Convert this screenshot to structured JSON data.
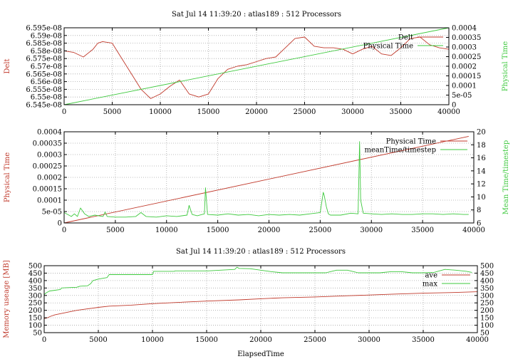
{
  "colors": {
    "red": "#c0392b",
    "green": "#3ec93e",
    "grid": "#a8a8a8"
  },
  "chart_data": [
    {
      "type": "line",
      "title": "Sat Jul 14 11:39:20 : atlas189 : 512 Processors",
      "ylabel": "Delt",
      "y2label": "Physical Time",
      "xlim": [
        0,
        40000
      ],
      "ylim": [
        6.545e-08,
        6.595e-08
      ],
      "y2lim": [
        0,
        0.0004
      ],
      "x_ticks": [
        "0",
        "5000",
        "10000",
        "15000",
        "20000",
        "25000",
        "30000",
        "35000",
        "40000"
      ],
      "y_ticks": [
        "6.545e-08",
        "6.55e-08",
        "6.555e-08",
        "6.56e-08",
        "6.565e-08",
        "6.57e-08",
        "6.575e-08",
        "6.58e-08",
        "6.585e-08",
        "6.59e-08",
        "6.595e-08"
      ],
      "y2_ticks": [
        "0",
        "5e-05",
        "0.0001",
        "0.00015",
        "0.0002",
        "0.00025",
        "0.0003",
        "0.00035",
        "0.0004"
      ],
      "grid": true,
      "legend_position": "top-right",
      "series": [
        {
          "name": "Delt",
          "axis": "y",
          "color": "red",
          "x": [
            0,
            1000,
            2000,
            3000,
            3500,
            4000,
            5000,
            6000,
            7000,
            8000,
            9000,
            10000,
            11000,
            12000,
            13000,
            14000,
            15000,
            16000,
            17000,
            18000,
            19000,
            20000,
            21000,
            22000,
            23000,
            24000,
            25000,
            26000,
            27000,
            28000,
            29000,
            30000,
            31000,
            32000,
            33000,
            34000,
            35000,
            36000,
            37000,
            38000,
            39000,
            40000
          ],
          "y": [
            6.58e-08,
            6.579e-08,
            6.576e-08,
            6.581e-08,
            6.585e-08,
            6.586e-08,
            6.585e-08,
            6.575e-08,
            6.565e-08,
            6.555e-08,
            6.549e-08,
            6.552e-08,
            6.557e-08,
            6.561e-08,
            6.552e-08,
            6.55e-08,
            6.552e-08,
            6.562e-08,
            6.568e-08,
            6.57e-08,
            6.571e-08,
            6.573e-08,
            6.575e-08,
            6.576e-08,
            6.582e-08,
            6.588e-08,
            6.589e-08,
            6.583e-08,
            6.582e-08,
            6.582e-08,
            6.581e-08,
            6.578e-08,
            6.581e-08,
            6.583e-08,
            6.578e-08,
            6.577e-08,
            6.582e-08,
            6.588e-08,
            6.589e-08,
            6.584e-08,
            6.582e-08,
            6.581e-08
          ]
        },
        {
          "name": "Physical Time",
          "axis": "y2",
          "color": "green",
          "x": [
            0,
            40000
          ],
          "y": [
            0,
            0.0004
          ]
        }
      ]
    },
    {
      "type": "line",
      "ylabel": "Physical Time",
      "y2label": "Mean Time/timestep",
      "xlim": [
        0,
        40000
      ],
      "ylim": [
        0,
        0.0004
      ],
      "y2lim": [
        6,
        20
      ],
      "x_ticks": [
        "0",
        "5000",
        "10000",
        "15000",
        "20000",
        "25000",
        "30000",
        "35000",
        "40000"
      ],
      "y_ticks": [
        "0",
        "5e-05",
        "0.0001",
        "0.00015",
        "0.0002",
        "0.00025",
        "0.0003",
        "0.00035",
        "0.0004"
      ],
      "y2_ticks": [
        "6",
        "8",
        "10",
        "12",
        "14",
        "16",
        "18",
        "20"
      ],
      "grid": true,
      "legend_position": "top-right",
      "series": [
        {
          "name": "Physical Time",
          "axis": "y",
          "color": "red",
          "x": [
            0,
            39500
          ],
          "y": [
            0,
            0.00038
          ]
        },
        {
          "name": "meanTime/timestep",
          "axis": "y2",
          "color": "green",
          "x": [
            0,
            700,
            1000,
            1300,
            1600,
            2000,
            2400,
            3000,
            3800,
            4000,
            4200,
            5000,
            6000,
            7000,
            7500,
            8000,
            9000,
            10000,
            11000,
            12000,
            12200,
            12500,
            13000,
            13700,
            13800,
            14000,
            15000,
            16000,
            17000,
            18000,
            19000,
            20000,
            21000,
            22000,
            23000,
            24000,
            25000,
            25300,
            25400,
            25600,
            25800,
            26000,
            27000,
            28000,
            28700,
            28850,
            28950,
            29200,
            30000,
            31000,
            32000,
            33000,
            34000,
            35000,
            36000,
            37000,
            38000,
            39000,
            39500
          ],
          "y": [
            7.6,
            7.0,
            7.4,
            7.0,
            8.3,
            7.4,
            7.0,
            7.2,
            7.0,
            7.7,
            7.0,
            6.9,
            6.9,
            7.0,
            7.6,
            7.0,
            6.9,
            7.1,
            7.0,
            7.2,
            8.7,
            7.3,
            7.1,
            7.4,
            11.4,
            7.3,
            7.2,
            7.4,
            7.2,
            7.3,
            7.1,
            7.3,
            7.2,
            7.3,
            7.2,
            7.4,
            7.6,
            10.7,
            10.2,
            8.5,
            7.4,
            7.2,
            7.2,
            7.5,
            7.4,
            18.5,
            9.5,
            7.5,
            7.4,
            7.3,
            7.4,
            7.3,
            7.3,
            7.4,
            7.4,
            7.3,
            7.4,
            7.3,
            7.3
          ]
        }
      ]
    },
    {
      "type": "line",
      "title": "Sat Jul 14 11:39:20 : atlas189 : 512 Processors",
      "xlabel": "ElapsedTime",
      "ylabel": "Memory useage [MB]",
      "xlim": [
        0,
        40000
      ],
      "ylim": [
        50,
        500
      ],
      "y2lim": [
        50,
        500
      ],
      "x_ticks": [
        "0",
        "5000",
        "10000",
        "15000",
        "20000",
        "25000",
        "30000",
        "35000",
        "40000"
      ],
      "y_ticks": [
        "50",
        "100",
        "150",
        "200",
        "250",
        "300",
        "350",
        "400",
        "450",
        "500"
      ],
      "y2_ticks": [
        "50",
        "100",
        "150",
        "200",
        "250",
        "300",
        "350",
        "400",
        "450",
        "500"
      ],
      "grid": true,
      "legend_position": "top-right",
      "series": [
        {
          "name": "ave",
          "axis": "y",
          "color": "red",
          "x": [
            0,
            300,
            600,
            1000,
            2000,
            3000,
            4000,
            5000,
            6000,
            8000,
            10000,
            12000,
            15000,
            18000,
            20000,
            22000,
            25000,
            28000,
            30000,
            32000,
            35000,
            38000,
            40000
          ],
          "y": [
            145,
            150,
            160,
            170,
            185,
            200,
            210,
            220,
            228,
            235,
            245,
            252,
            262,
            270,
            278,
            284,
            290,
            298,
            303,
            308,
            315,
            320,
            325
          ]
        },
        {
          "name": "max",
          "axis": "y",
          "color": "green",
          "x": [
            0,
            200,
            500,
            1000,
            1500,
            1600,
            2000,
            3000,
            3300,
            4000,
            4300,
            4500,
            5000,
            5800,
            6000,
            7000,
            7800,
            8000,
            10000,
            10100,
            12000,
            12100,
            15000,
            15100,
            17600,
            17800,
            18000,
            19000,
            20000,
            21000,
            22000,
            24000,
            25000,
            26000,
            27000,
            28000,
            29000,
            30000,
            31000,
            32000,
            33000,
            34000,
            35000,
            36000,
            37000,
            38000,
            39000,
            39500
          ],
          "y": [
            305,
            318,
            330,
            335,
            340,
            350,
            352,
            355,
            362,
            365,
            380,
            400,
            410,
            420,
            440,
            440,
            440,
            440,
            440,
            462,
            462,
            465,
            465,
            465,
            475,
            490,
            482,
            480,
            470,
            460,
            452,
            452,
            452,
            452,
            470,
            470,
            452,
            452,
            452,
            460,
            460,
            452,
            452,
            455,
            475,
            470,
            462,
            455
          ]
        }
      ]
    }
  ]
}
